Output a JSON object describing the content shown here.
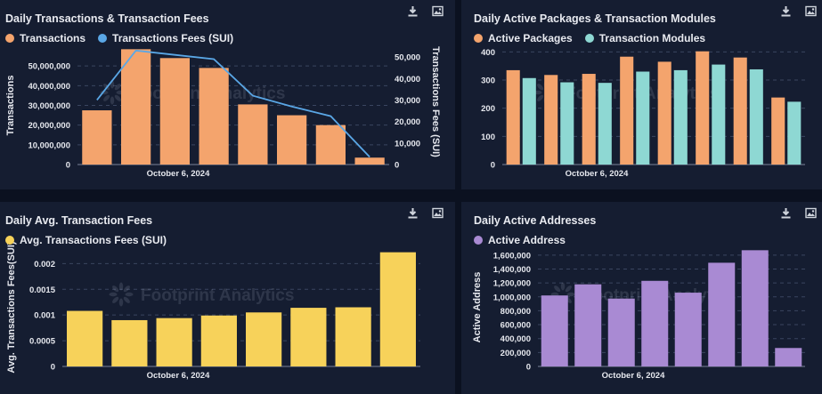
{
  "watermark": "Footprint Analytics",
  "panels": [
    {
      "title": "Daily Transactions & Transaction Fees",
      "legend": [
        {
          "label": "Transactions",
          "color": "#f4a46d"
        },
        {
          "label": "Transactions Fees (SUI)",
          "color": "#5aa7e6"
        }
      ],
      "tools": {
        "download": "download-icon",
        "image": "image-icon"
      }
    },
    {
      "title": "Daily Active Packages & Transaction Modules",
      "legend": [
        {
          "label": "Active Packages",
          "color": "#f4a46d"
        },
        {
          "label": "Transaction Modules",
          "color": "#8ed8d3"
        }
      ],
      "tools": {
        "download": "download-icon",
        "image": "image-icon"
      }
    },
    {
      "title": "Daily Avg. Transaction Fees",
      "legend": [
        {
          "label": "Avg. Transactions Fees (SUI)",
          "color": "#f7d25a"
        }
      ],
      "tools": {
        "download": "download-icon",
        "image": "image-icon"
      }
    },
    {
      "title": "Daily Active Addresses",
      "legend": [
        {
          "label": "Active Address",
          "color": "#a98ad3"
        }
      ],
      "tools": {
        "download": "download-icon",
        "image": "image-icon"
      }
    }
  ],
  "chart_data": [
    {
      "type": "bar",
      "title": "Daily Transactions & Transaction Fees",
      "xtick": "October 6, 2024",
      "ylabel": "Transactions",
      "y2label": "Transactions Fees (SUI)",
      "ylim": [
        0,
        60000000
      ],
      "yticks": [
        0,
        10000000,
        20000000,
        30000000,
        40000000,
        50000000
      ],
      "ytick_labels": [
        "0",
        "10,000,000",
        "20,000,000",
        "30,000,000",
        "40,000,000",
        "50,000,000"
      ],
      "y2lim": [
        0,
        55000
      ],
      "y2ticks": [
        0,
        10000,
        20000,
        30000,
        40000,
        50000
      ],
      "y2tick_labels": [
        "0",
        "10,000",
        "20,000",
        "30,000",
        "40,000",
        "50,000"
      ],
      "series": [
        {
          "name": "Transactions",
          "type": "bar",
          "axis": "left",
          "color": "#f4a46d",
          "values": [
            27500000,
            58500000,
            54000000,
            49000000,
            30500000,
            25000000,
            20000000,
            3500000
          ]
        },
        {
          "name": "Transactions Fees (SUI)",
          "type": "line",
          "axis": "right",
          "color": "#5aa7e6",
          "values": [
            30000,
            53000,
            51000,
            49000,
            32000,
            27000,
            22500,
            3500
          ]
        }
      ]
    },
    {
      "type": "bar",
      "title": "Daily Active Packages & Transaction Modules",
      "xtick": "October 6, 2024",
      "ylim": [
        0,
        420
      ],
      "yticks": [
        0,
        100,
        200,
        300,
        400
      ],
      "ytick_labels": [
        "0",
        "100",
        "200",
        "300",
        "400"
      ],
      "series": [
        {
          "name": "Active Packages",
          "color": "#f4a46d",
          "values": [
            335,
            318,
            322,
            383,
            365,
            402,
            380,
            238
          ]
        },
        {
          "name": "Transaction Modules",
          "color": "#8ed8d3",
          "values": [
            307,
            292,
            290,
            330,
            335,
            355,
            338,
            223
          ]
        }
      ]
    },
    {
      "type": "bar",
      "title": "Daily Avg. Transaction Fees",
      "xtick": "October 6, 2024",
      "ylabel": "Avg. Transactions Fees(SUI)",
      "ylim": [
        0,
        0.0023
      ],
      "yticks": [
        0,
        0.0005,
        0.001,
        0.0015,
        0.002
      ],
      "ytick_labels": [
        "0",
        "0.0005",
        "0.001",
        "0.0015",
        "0.002"
      ],
      "series": [
        {
          "name": "Avg. Transactions Fees (SUI)",
          "color": "#f7d25a",
          "values": [
            0.00108,
            0.0009,
            0.00094,
            0.00099,
            0.00105,
            0.00114,
            0.00115,
            0.00222
          ]
        }
      ]
    },
    {
      "type": "bar",
      "title": "Daily Active Addresses",
      "xtick": "October 6, 2024",
      "ylabel": "Active Address",
      "ylim": [
        0,
        1700000
      ],
      "yticks": [
        0,
        200000,
        400000,
        600000,
        800000,
        1000000,
        1200000,
        1400000,
        1600000
      ],
      "ytick_labels": [
        "0",
        "200,000",
        "400,000",
        "600,000",
        "800,000",
        "1,000,000",
        "1,200,000",
        "1,400,000",
        "1,600,000"
      ],
      "series": [
        {
          "name": "Active Address",
          "color": "#a98ad3",
          "values": [
            1020000,
            1180000,
            975000,
            1230000,
            1060000,
            1490000,
            1670000,
            265000
          ]
        }
      ]
    }
  ]
}
